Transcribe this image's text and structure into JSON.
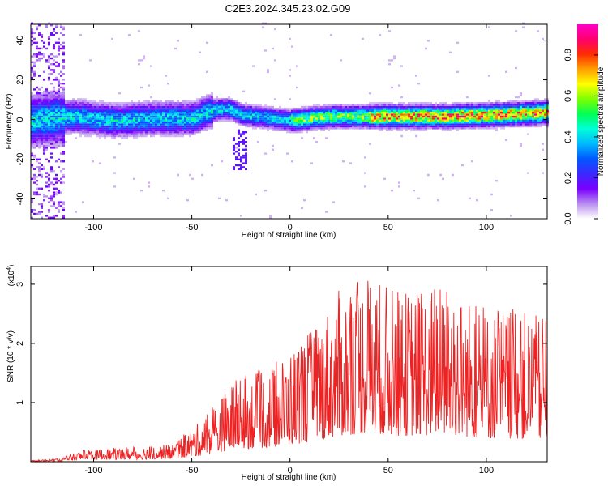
{
  "title": "C2E3.2024.345.23.02.G09",
  "chart_data": [
    {
      "type": "heatmap",
      "xlabel": "Height of straight line (km)",
      "ylabel": "Frequency (Hz)",
      "xlim": [
        -132,
        131
      ],
      "ylim": [
        -50,
        48
      ],
      "x_ticks": [
        -100,
        -50,
        0,
        50,
        100
      ],
      "y_ticks": [
        -40,
        -20,
        0,
        20,
        40
      ],
      "colorbar": {
        "label": "Normalized spectral amplitude",
        "range": [
          0,
          0.95
        ],
        "ticks": [
          "0.0",
          "0.2",
          "0.4",
          "0.6",
          "0.8"
        ],
        "colormap": [
          "#ffffff",
          "#b98ef0",
          "#7a00ff",
          "#3c28ff",
          "#0058ff",
          "#00b8ff",
          "#00ffd8",
          "#00ff55",
          "#7dff00",
          "#ffff00",
          "#ff9f00",
          "#ff2d00",
          "#ff006e",
          "#ff00c8"
        ]
      },
      "signal_center_profile": [
        {
          "x": -132,
          "y": -1
        },
        {
          "x": -110,
          "y": 1
        },
        {
          "x": -90,
          "y": -1
        },
        {
          "x": -70,
          "y": 0
        },
        {
          "x": -50,
          "y": 0
        },
        {
          "x": -40,
          "y": 4
        },
        {
          "x": -32,
          "y": 5
        },
        {
          "x": -25,
          "y": 2
        },
        {
          "x": 0,
          "y": -1
        },
        {
          "x": 20,
          "y": 1
        },
        {
          "x": 50,
          "y": 1
        },
        {
          "x": 80,
          "y": 1
        },
        {
          "x": 110,
          "y": 2
        },
        {
          "x": 131,
          "y": 3
        }
      ]
    },
    {
      "type": "line",
      "xlabel": "Height of straight line (km)",
      "ylabel": "SNR (10 * v/v)",
      "y_scale_label": "(x10",
      "y_scale_exponent": "4",
      "y_scale_suffix": ")",
      "xlim": [
        -132,
        131
      ],
      "ylim": [
        0,
        3.3
      ],
      "x_ticks": [
        -100,
        -50,
        0,
        50,
        100
      ],
      "y_ticks": [
        1,
        2,
        3
      ],
      "series": [
        {
          "color": "#ee2222",
          "envelope": [
            {
              "x": -132,
              "y": 0.02
            },
            {
              "x": -118,
              "y": 0.05
            },
            {
              "x": -105,
              "y": 0.2
            },
            {
              "x": -80,
              "y": 0.25
            },
            {
              "x": -60,
              "y": 0.3
            },
            {
              "x": -45,
              "y": 0.7
            },
            {
              "x": -28,
              "y": 1.4
            },
            {
              "x": -10,
              "y": 1.6
            },
            {
              "x": 10,
              "y": 2.2
            },
            {
              "x": 25,
              "y": 2.9
            },
            {
              "x": 38,
              "y": 3.2
            },
            {
              "x": 55,
              "y": 2.9
            },
            {
              "x": 80,
              "y": 3.0
            },
            {
              "x": 100,
              "y": 2.6
            },
            {
              "x": 115,
              "y": 2.6
            },
            {
              "x": 131,
              "y": 2.4
            }
          ]
        }
      ]
    }
  ]
}
